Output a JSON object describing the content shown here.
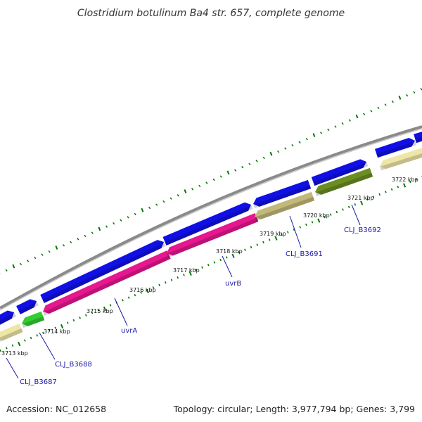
{
  "title": "Clostridium botulinum Ba4 str. 657, complete genome",
  "accession": "Accession: NC_012658",
  "summary": "Topology: circular; Length: 3,977,794 bp; Genes: 3,799",
  "colors": {
    "background": "#ffffff",
    "backbone": "#8a8a8a",
    "cds_forward": "#1010e6",
    "cds_reverse_pink": "#e6178f",
    "cds_reverse_green": "#33cc33",
    "cds_reverse_olive": "#6b8e23",
    "cds_reverse_khaki": "#c2b87a",
    "cds_reverse_pale": "#eee6a6",
    "tick_major": "#007700",
    "tick_minor": "#007700",
    "label_line": "#1a1aa8"
  },
  "ticks": [
    {
      "label": "3713 kbp"
    },
    {
      "label": "3714 kbp"
    },
    {
      "label": "3715 kbp"
    },
    {
      "label": "3716 kbp"
    },
    {
      "label": "3717 kbp"
    },
    {
      "label": "3718 kbp"
    },
    {
      "label": "3719 kbp"
    },
    {
      "label": "3720 kbp"
    },
    {
      "label": "3721 kbp"
    },
    {
      "label": "3722 kbp"
    }
  ],
  "genes": [
    {
      "label": "CLJ_B3687"
    },
    {
      "label": "CLJ_B3688"
    },
    {
      "label": "uvrA"
    },
    {
      "label": "uvrB"
    },
    {
      "label": "CLJ_B3691"
    },
    {
      "label": "CLJ_B3692"
    }
  ]
}
